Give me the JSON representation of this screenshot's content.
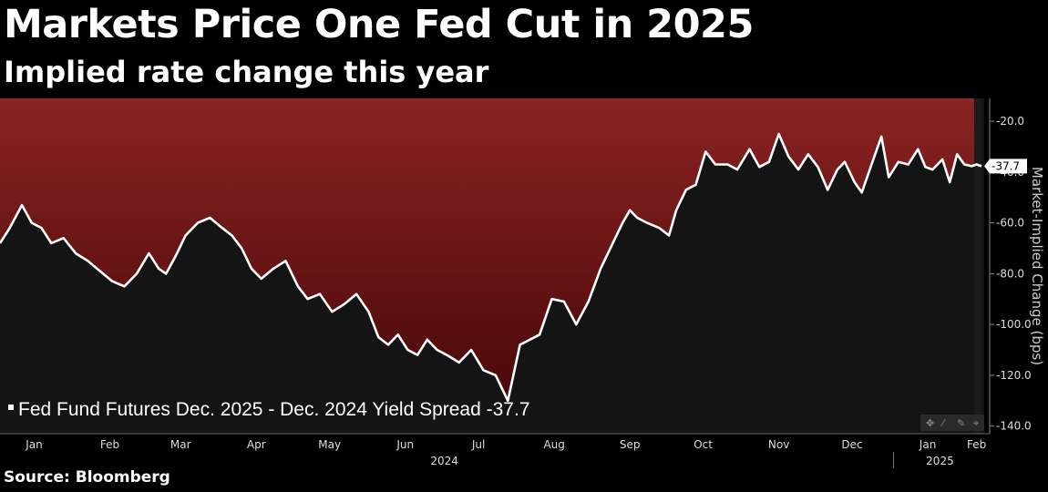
{
  "header": {
    "title": "Markets Price One Fed Cut in 2025",
    "subtitle": "Implied rate change this year"
  },
  "footer": {
    "source": "Source: Bloomberg"
  },
  "colors": {
    "background": "#000000",
    "plot_background": "#141414",
    "area_top": "#8a2323",
    "area_bottom": "#4a0808",
    "line": "#ffffff",
    "axis_panel": "#000000"
  },
  "chart_data": {
    "type": "line",
    "title": "Markets Price One Fed Cut in 2025",
    "subtitle": "Implied rate change this year",
    "ylabel": "Market-Implied Change (bps)",
    "ylim": [
      -143,
      -11
    ],
    "y_ticks": [
      -20,
      -40,
      -60,
      -80,
      -100,
      -120,
      -140
    ],
    "y_tick_labels": [
      "-20.0",
      "-40.0",
      "-60.0",
      "-80.0",
      "-100.0",
      "-120.0",
      "-140.0"
    ],
    "x_range": [
      "2024-01-01",
      "2025-02-06"
    ],
    "month_ticks": [
      {
        "label": "Jan",
        "date": "2024-01-15"
      },
      {
        "label": "Feb",
        "date": "2024-02-15"
      },
      {
        "label": "Mar",
        "date": "2024-03-15"
      },
      {
        "label": "Apr",
        "date": "2024-04-15"
      },
      {
        "label": "May",
        "date": "2024-05-15"
      },
      {
        "label": "Jun",
        "date": "2024-06-15"
      },
      {
        "label": "Jul",
        "date": "2024-07-15"
      },
      {
        "label": "Aug",
        "date": "2024-08-15"
      },
      {
        "label": "Sep",
        "date": "2024-09-15"
      },
      {
        "label": "Oct",
        "date": "2024-10-15"
      },
      {
        "label": "Nov",
        "date": "2024-11-15"
      },
      {
        "label": "Dec",
        "date": "2024-12-15"
      },
      {
        "label": "Jan",
        "date": "2025-01-15"
      },
      {
        "label": "Feb",
        "date": "2025-02-04"
      }
    ],
    "year_labels": [
      {
        "label": "2024",
        "date": "2024-07-01"
      },
      {
        "label": "2025",
        "date": "2025-01-20"
      }
    ],
    "year_divider": "2025-01-01",
    "series": [
      {
        "name": "Fed Fund Futures Dec. 2025 - Dec. 2024 Yield Spread",
        "last_value": "-37.7",
        "legend_label": "Fed Fund Futures Dec. 2025 - Dec. 2024 Yield Spread -37.7",
        "x": [
          "2024-01-01",
          "2024-01-05",
          "2024-01-10",
          "2024-01-14",
          "2024-01-18",
          "2024-01-22",
          "2024-01-27",
          "2024-02-01",
          "2024-02-06",
          "2024-02-11",
          "2024-02-16",
          "2024-02-21",
          "2024-02-26",
          "2024-03-02",
          "2024-03-06",
          "2024-03-09",
          "2024-03-13",
          "2024-03-17",
          "2024-03-22",
          "2024-03-27",
          "2024-04-01",
          "2024-04-05",
          "2024-04-09",
          "2024-04-13",
          "2024-04-17",
          "2024-04-22",
          "2024-04-27",
          "2024-05-02",
          "2024-05-06",
          "2024-05-11",
          "2024-05-16",
          "2024-05-21",
          "2024-05-26",
          "2024-05-31",
          "2024-06-04",
          "2024-06-08",
          "2024-06-12",
          "2024-06-16",
          "2024-06-20",
          "2024-06-24",
          "2024-06-28",
          "2024-07-02",
          "2024-07-07",
          "2024-07-12",
          "2024-07-17",
          "2024-07-22",
          "2024-07-27",
          "2024-08-01",
          "2024-08-05",
          "2024-08-09",
          "2024-08-14",
          "2024-08-19",
          "2024-08-24",
          "2024-08-29",
          "2024-09-03",
          "2024-09-06",
          "2024-09-09",
          "2024-09-12",
          "2024-09-15",
          "2024-09-18",
          "2024-09-22",
          "2024-09-27",
          "2024-10-01",
          "2024-10-04",
          "2024-10-08",
          "2024-10-12",
          "2024-10-16",
          "2024-10-20",
          "2024-10-25",
          "2024-10-29",
          "2024-11-03",
          "2024-11-07",
          "2024-11-11",
          "2024-11-15",
          "2024-11-19",
          "2024-11-23",
          "2024-11-27",
          "2024-12-01",
          "2024-12-05",
          "2024-12-09",
          "2024-12-12",
          "2024-12-16",
          "2024-12-19",
          "2024-12-23",
          "2024-12-27",
          "2024-12-30",
          "2025-01-03",
          "2025-01-07",
          "2025-01-11",
          "2025-01-14",
          "2025-01-17",
          "2025-01-21",
          "2025-01-24",
          "2025-01-27",
          "2025-01-30",
          "2025-02-02",
          "2025-02-04",
          "2025-02-06"
        ],
        "values": [
          -68,
          -62,
          -53,
          -60,
          -62,
          -68,
          -66,
          -72,
          -75,
          -79,
          -83,
          -85,
          -80,
          -72,
          -78,
          -80,
          -73,
          -65,
          -60,
          -58,
          -62,
          -65,
          -70,
          -78,
          -82,
          -78,
          -75,
          -85,
          -90,
          -88,
          -95,
          -92,
          -88,
          -95,
          -105,
          -108,
          -104,
          -110,
          -112,
          -106,
          -110,
          -112,
          -115,
          -110,
          -118,
          -120,
          -130,
          -108,
          -106,
          -104,
          -90,
          -91,
          -100,
          -91,
          -78,
          -72,
          -66,
          -60,
          -55,
          -58,
          -60,
          -62,
          -65,
          -55,
          -47,
          -45,
          -32,
          -37,
          -37,
          -39,
          -31,
          -38,
          -36,
          -25,
          -34,
          -39,
          -33,
          -38,
          -47,
          -39,
          -36,
          -44,
          -48,
          -37,
          -26,
          -42,
          -36,
          -37,
          -31,
          -38,
          -39,
          -35,
          -44,
          -33,
          -37,
          -37.7,
          -37,
          -37.7
        ]
      }
    ]
  }
}
